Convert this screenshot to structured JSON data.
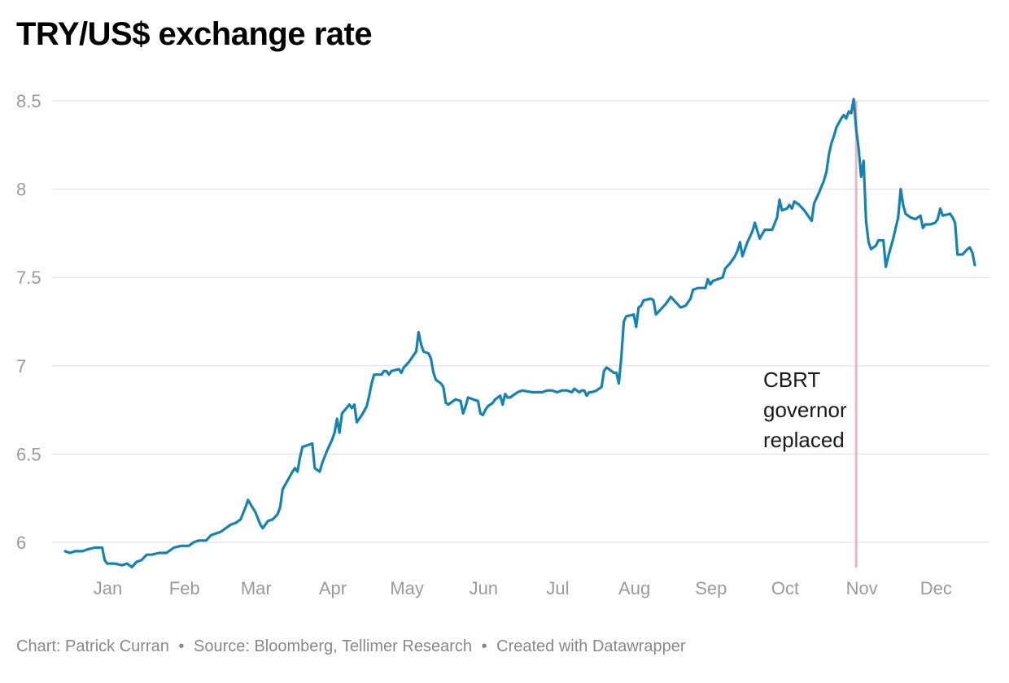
{
  "chart_data": {
    "type": "line",
    "title": "TRY/US$ exchange rate",
    "xlabel": "",
    "ylabel": "",
    "ylim": [
      5.85,
      8.55
    ],
    "yticks": [
      6,
      6.5,
      7,
      7.5,
      8,
      8.5
    ],
    "ytick_labels": [
      "6",
      "6.5",
      "7",
      "7.5",
      "8",
      "8.5"
    ],
    "months": [
      "Jan",
      "Feb",
      "Mar",
      "Apr",
      "May",
      "Jun",
      "Jul",
      "Aug",
      "Sep",
      "Oct",
      "Nov",
      "Dec"
    ],
    "x_unit": "day of year 2020",
    "grid": true,
    "legend": "none",
    "series": [
      {
        "color": "#1483b0",
        "points": [
          [
            1,
            5.95
          ],
          [
            3,
            5.94
          ],
          [
            5,
            5.95
          ],
          [
            8,
            5.95
          ],
          [
            10,
            5.96
          ],
          [
            13,
            5.97
          ],
          [
            16,
            5.97
          ],
          [
            17,
            5.9
          ],
          [
            18,
            5.88
          ],
          [
            21,
            5.88
          ],
          [
            24,
            5.87
          ],
          [
            26,
            5.88
          ],
          [
            28,
            5.86
          ],
          [
            30,
            5.89
          ],
          [
            32,
            5.9
          ],
          [
            34,
            5.93
          ],
          [
            36,
            5.93
          ],
          [
            39,
            5.94
          ],
          [
            42,
            5.94
          ],
          [
            45,
            5.97
          ],
          [
            48,
            5.98
          ],
          [
            51,
            5.98
          ],
          [
            53,
            6.0
          ],
          [
            55,
            6.01
          ],
          [
            58,
            6.01
          ],
          [
            60,
            6.04
          ],
          [
            62,
            6.05
          ],
          [
            64,
            6.06
          ],
          [
            66,
            6.08
          ],
          [
            68,
            6.1
          ],
          [
            70,
            6.11
          ],
          [
            72,
            6.13
          ],
          [
            74,
            6.2
          ],
          [
            75,
            6.24
          ],
          [
            78,
            6.17
          ],
          [
            80,
            6.1
          ],
          [
            81,
            6.08
          ],
          [
            83,
            6.12
          ],
          [
            85,
            6.13
          ],
          [
            87,
            6.16
          ],
          [
            88,
            6.2
          ],
          [
            89,
            6.3
          ],
          [
            91,
            6.35
          ],
          [
            93,
            6.4
          ],
          [
            94,
            6.42
          ],
          [
            95,
            6.4
          ],
          [
            96,
            6.48
          ],
          [
            97,
            6.54
          ],
          [
            101,
            6.56
          ],
          [
            102,
            6.42
          ],
          [
            104,
            6.4
          ],
          [
            105,
            6.45
          ],
          [
            107,
            6.52
          ],
          [
            109,
            6.58
          ],
          [
            110,
            6.62
          ],
          [
            111,
            6.7
          ],
          [
            112,
            6.62
          ],
          [
            113,
            6.73
          ],
          [
            116,
            6.78
          ],
          [
            117,
            6.76
          ],
          [
            118,
            6.78
          ],
          [
            119,
            6.68
          ],
          [
            121,
            6.72
          ],
          [
            123,
            6.77
          ],
          [
            124,
            6.83
          ],
          [
            125,
            6.9
          ],
          [
            126,
            6.95
          ],
          [
            129,
            6.95
          ],
          [
            130,
            6.97
          ],
          [
            131,
            6.97
          ],
          [
            132,
            6.95
          ],
          [
            133,
            6.97
          ],
          [
            136,
            6.98
          ],
          [
            137,
            6.96
          ],
          [
            138,
            6.99
          ],
          [
            140,
            7.02
          ],
          [
            143,
            7.08
          ],
          [
            144,
            7.19
          ],
          [
            145,
            7.12
          ],
          [
            146,
            7.08
          ],
          [
            148,
            7.07
          ],
          [
            149,
            7.04
          ],
          [
            150,
            6.96
          ],
          [
            151,
            6.92
          ],
          [
            153,
            6.9
          ],
          [
            154,
            6.88
          ],
          [
            155,
            6.79
          ],
          [
            156,
            6.78
          ],
          [
            158,
            6.8
          ],
          [
            159,
            6.81
          ],
          [
            161,
            6.8
          ],
          [
            162,
            6.73
          ],
          [
            163,
            6.77
          ],
          [
            164,
            6.82
          ],
          [
            166,
            6.81
          ],
          [
            168,
            6.8
          ],
          [
            169,
            6.73
          ],
          [
            170,
            6.72
          ],
          [
            171,
            6.75
          ],
          [
            172,
            6.77
          ],
          [
            173,
            6.78
          ],
          [
            174,
            6.79
          ],
          [
            175,
            6.81
          ],
          [
            176,
            6.82
          ],
          [
            177,
            6.83
          ],
          [
            178,
            6.78
          ],
          [
            179,
            6.84
          ],
          [
            180,
            6.82
          ],
          [
            181,
            6.82
          ],
          [
            182,
            6.83
          ],
          [
            184,
            6.85
          ],
          [
            186,
            6.86
          ],
          [
            190,
            6.85
          ],
          [
            194,
            6.85
          ],
          [
            196,
            6.86
          ],
          [
            198,
            6.86
          ],
          [
            200,
            6.85
          ],
          [
            202,
            6.86
          ],
          [
            204,
            6.86
          ],
          [
            206,
            6.85
          ],
          [
            207,
            6.87
          ],
          [
            209,
            6.85
          ],
          [
            210,
            6.86
          ],
          [
            211,
            6.86
          ],
          [
            212,
            6.83
          ],
          [
            213,
            6.85
          ],
          [
            214,
            6.85
          ],
          [
            216,
            6.86
          ],
          [
            218,
            6.88
          ],
          [
            219,
            6.97
          ],
          [
            220,
            6.99
          ],
          [
            221,
            6.98
          ],
          [
            222,
            6.97
          ],
          [
            223,
            6.96
          ],
          [
            224,
            6.96
          ],
          [
            225,
            6.9
          ],
          [
            226,
            7.05
          ],
          [
            227,
            7.25
          ],
          [
            228,
            7.28
          ],
          [
            231,
            7.29
          ],
          [
            232,
            7.22
          ],
          [
            233,
            7.33
          ],
          [
            234,
            7.34
          ],
          [
            235,
            7.37
          ],
          [
            238,
            7.38
          ],
          [
            239,
            7.37
          ],
          [
            240,
            7.29
          ],
          [
            242,
            7.32
          ],
          [
            244,
            7.35
          ],
          [
            246,
            7.39
          ],
          [
            248,
            7.36
          ],
          [
            250,
            7.33
          ],
          [
            252,
            7.34
          ],
          [
            254,
            7.38
          ],
          [
            255,
            7.43
          ],
          [
            257,
            7.44
          ],
          [
            260,
            7.44
          ],
          [
            261,
            7.49
          ],
          [
            262,
            7.46
          ],
          [
            263,
            7.48
          ],
          [
            265,
            7.49
          ],
          [
            267,
            7.5
          ],
          [
            268,
            7.55
          ],
          [
            270,
            7.58
          ],
          [
            272,
            7.62
          ],
          [
            273,
            7.65
          ],
          [
            274,
            7.7
          ],
          [
            275,
            7.62
          ],
          [
            277,
            7.7
          ],
          [
            279,
            7.76
          ],
          [
            280,
            7.81
          ],
          [
            282,
            7.72
          ],
          [
            284,
            7.77
          ],
          [
            287,
            7.77
          ],
          [
            289,
            7.84
          ],
          [
            290,
            7.94
          ],
          [
            291,
            7.88
          ],
          [
            293,
            7.89
          ],
          [
            294,
            7.91
          ],
          [
            295,
            7.89
          ],
          [
            296,
            7.93
          ],
          [
            298,
            7.91
          ],
          [
            300,
            7.88
          ],
          [
            302,
            7.84
          ],
          [
            303,
            7.82
          ],
          [
            304,
            7.92
          ],
          [
            306,
            7.98
          ],
          [
            308,
            8.05
          ],
          [
            309,
            8.1
          ],
          [
            310,
            8.2
          ],
          [
            311,
            8.26
          ],
          [
            312,
            8.3
          ],
          [
            313,
            8.35
          ],
          [
            315,
            8.4
          ],
          [
            316,
            8.42
          ],
          [
            317,
            8.4
          ],
          [
            318,
            8.44
          ],
          [
            319,
            8.43
          ],
          [
            320,
            8.51
          ],
          [
            321,
            8.34
          ],
          [
            322,
            8.23
          ],
          [
            323,
            8.07
          ],
          [
            324,
            8.16
          ],
          [
            325,
            7.82
          ],
          [
            326,
            7.7
          ],
          [
            327,
            7.66
          ],
          [
            329,
            7.68
          ],
          [
            330,
            7.71
          ],
          [
            332,
            7.71
          ],
          [
            333,
            7.56
          ],
          [
            334,
            7.62
          ],
          [
            336,
            7.72
          ],
          [
            338,
            7.84
          ],
          [
            339,
            8.0
          ],
          [
            340,
            7.91
          ],
          [
            341,
            7.86
          ],
          [
            343,
            7.84
          ],
          [
            345,
            7.83
          ],
          [
            347,
            7.85
          ],
          [
            348,
            7.78
          ],
          [
            349,
            7.8
          ],
          [
            351,
            7.8
          ],
          [
            353,
            7.81
          ],
          [
            354,
            7.83
          ],
          [
            355,
            7.89
          ],
          [
            356,
            7.85
          ],
          [
            359,
            7.86
          ],
          [
            360,
            7.84
          ],
          [
            361,
            7.81
          ],
          [
            362,
            7.63
          ],
          [
            364,
            7.63
          ],
          [
            366,
            7.66
          ],
          [
            367,
            7.67
          ],
          [
            368,
            7.64
          ],
          [
            369,
            7.57
          ]
        ]
      }
    ],
    "annotations": [
      {
        "text_lines": [
          "CBRT",
          "governor",
          "replaced"
        ],
        "x": 321,
        "color": "#f0b3ba"
      }
    ]
  },
  "footer": {
    "chart_credit": "Chart: Patrick Curran",
    "source": "Source: Bloomberg, Tellimer Research",
    "created": "Created with Datawrapper",
    "separator": "•"
  }
}
